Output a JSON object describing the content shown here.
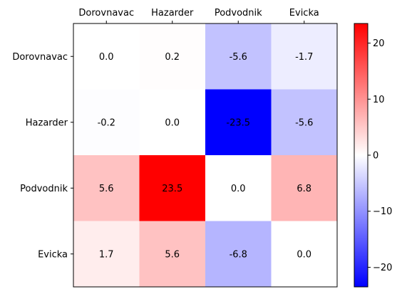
{
  "chart_data": {
    "type": "heatmap",
    "rows": [
      "Dorovnavac",
      "Hazarder",
      "Podvodnik",
      "Evicka"
    ],
    "columns": [
      "Dorovnavac",
      "Hazarder",
      "Podvodnik",
      "Evicka"
    ],
    "values": [
      [
        0.0,
        0.2,
        -5.6,
        -1.7
      ],
      [
        -0.2,
        0.0,
        -23.5,
        -5.6
      ],
      [
        5.6,
        23.5,
        0.0,
        6.8
      ],
      [
        1.7,
        5.6,
        -6.8,
        0.0
      ]
    ],
    "cell_labels": [
      [
        "0.0",
        "0.2",
        "-5.6",
        "-1.7"
      ],
      [
        "-0.2",
        "0.0",
        "-23.5",
        "-5.6"
      ],
      [
        "5.6",
        "23.5",
        "0.0",
        "6.8"
      ],
      [
        "1.7",
        "5.6",
        "-6.8",
        "0.0"
      ]
    ],
    "colormap": "bwr",
    "colors": {
      "negative": "#0000ff",
      "zero": "#ffffff",
      "positive": "#ff0000"
    },
    "vlim": [
      -23.5,
      23.5
    ],
    "colorbar": {
      "ticks": [
        20,
        10,
        0,
        -10,
        -20
      ],
      "tick_labels": [
        "20",
        "10",
        "0",
        "−10",
        "−20"
      ]
    },
    "x_tick_position": "top",
    "grid": false,
    "title": "",
    "xlabel": "",
    "ylabel": ""
  }
}
